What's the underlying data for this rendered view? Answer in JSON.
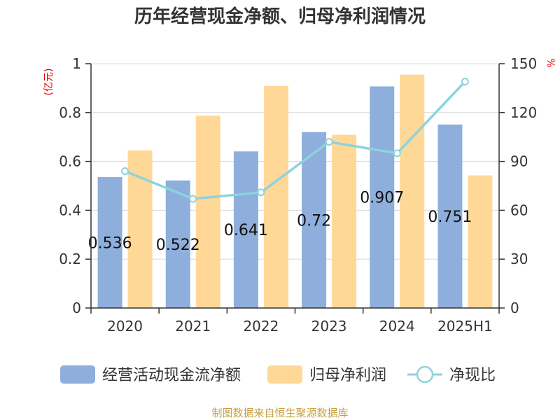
{
  "chart_data": {
    "type": "bar",
    "title": "历年经营现金净额、归母净利润情况",
    "categories": [
      "2020",
      "2021",
      "2022",
      "2023",
      "2024",
      "2025H1"
    ],
    "series": [
      {
        "name": "经营活动现金流净额",
        "kind": "bar",
        "axis": "left",
        "values": [
          0.536,
          0.522,
          0.641,
          0.72,
          0.907,
          0.751
        ],
        "labels": [
          "0.536",
          "0.522",
          "0.641",
          "0.72",
          "0.907",
          "0.751"
        ],
        "color": "#8eaedb"
      },
      {
        "name": "归母净利润",
        "kind": "bar",
        "axis": "left",
        "values": [
          0.645,
          0.787,
          0.909,
          0.709,
          0.955,
          0.543
        ],
        "color": "#ffd898"
      },
      {
        "name": "净现比",
        "kind": "line",
        "axis": "right",
        "values": [
          84,
          67,
          71,
          102,
          95,
          139
        ],
        "color": "#8dd3dc"
      }
    ],
    "yleft": {
      "unit": "(亿元)",
      "range": [
        0,
        1
      ],
      "ticks": [
        "0",
        "0.2",
        "0.4",
        "0.6",
        "0.8",
        "1"
      ]
    },
    "yright": {
      "unit": "%",
      "range": [
        0,
        150
      ],
      "ticks": [
        "0",
        "30",
        "60",
        "90",
        "120",
        "150"
      ]
    },
    "grid": true,
    "legend": "bottom"
  },
  "source": "制图数据来自恒生聚源数据库"
}
